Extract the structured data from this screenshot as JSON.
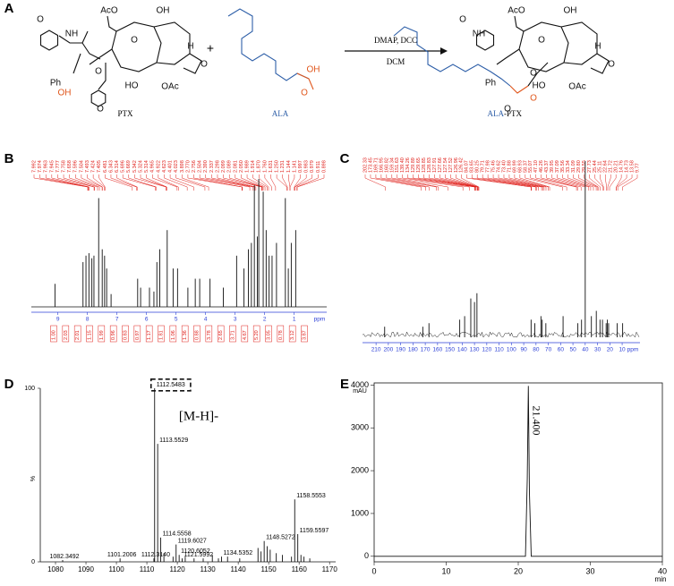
{
  "figure": {
    "A": {
      "label": "A",
      "plus": "+",
      "reagents": {
        "above": "DMAP, DCC",
        "below": "DCM"
      },
      "ptx": {
        "name": "PTX",
        "atoms": [
          "AcO",
          "O",
          "OH",
          "NH",
          "O",
          "Ph",
          "O",
          "OH",
          "HO",
          "OAc",
          "O",
          "O",
          "H"
        ]
      },
      "ala": {
        "name": "ALA",
        "atoms": [
          "OH",
          "O"
        ]
      },
      "product": {
        "name": [
          "ALA",
          "-PTX"
        ],
        "atoms": [
          "AcO",
          "O",
          "OH",
          "NH",
          "O",
          "Ph",
          "O",
          "O",
          "HO",
          "OAc",
          "O",
          "O",
          "H"
        ]
      },
      "colors": {
        "ala": "#2e5fa8",
        "acid": "#e0561b"
      }
    },
    "B": {
      "label": "B",
      "type": "spectrum",
      "peak_labels": [
        "7.992",
        "7.974",
        "7.963",
        "7.945",
        "7.777",
        "7.758",
        "7.658",
        "7.596",
        "7.504",
        "7.493",
        "7.424",
        "7.405",
        "6.481",
        "6.343",
        "6.314",
        "5.696",
        "5.669",
        "5.342",
        "5.324",
        "5.314",
        "4.965",
        "4.922",
        "4.623",
        "4.401",
        "4.023",
        "3.898",
        "2.770",
        "2.756",
        "2.504",
        "2.390",
        "2.337",
        "2.298",
        "2.099",
        "2.089",
        "2.081",
        "2.050",
        "1.989",
        "1.914",
        "1.870",
        "1.760",
        "1.631",
        "1.250",
        "1.231",
        "1.144",
        "1.141",
        "0.997",
        "0.983",
        "0.979",
        "0.911",
        "0.898"
      ],
      "xlim": [
        9.9,
        -0.1
      ],
      "xticks": [
        9,
        8,
        7,
        6,
        5,
        4,
        3,
        2,
        1
      ],
      "x_unit": "ppm",
      "ylim": [
        0,
        100
      ],
      "integrals": [
        "1.00",
        "2.03",
        "2.01",
        "1.15",
        "1.99",
        "0.96",
        "0.83",
        "0.97",
        "1.17",
        "1.81",
        "1.06",
        "1.36",
        "0.88",
        "3.78",
        "2.65",
        "3.71",
        "4.67",
        "5.20",
        "3.05",
        "0.78",
        "3.12",
        "3.87"
      ],
      "peaks": {
        "ppm": [
          9.1,
          8.15,
          8.05,
          7.95,
          7.85,
          7.78,
          7.62,
          7.5,
          7.42,
          7.35,
          7.2,
          6.3,
          6.2,
          5.9,
          5.75,
          5.65,
          5.55,
          5.3,
          5.1,
          4.95,
          4.6,
          4.35,
          4.2,
          3.85,
          3.4,
          2.95,
          2.7,
          2.55,
          2.45,
          2.35,
          2.25,
          2.2,
          2.05,
          1.95,
          1.85,
          1.75,
          1.6,
          1.3,
          1.2,
          1.1,
          0.95
        ],
        "intensity": [
          18,
          35,
          40,
          42,
          38,
          40,
          85,
          45,
          40,
          30,
          10,
          22,
          15,
          15,
          12,
          35,
          45,
          60,
          30,
          30,
          15,
          22,
          22,
          22,
          15,
          40,
          30,
          45,
          50,
          95,
          55,
          100,
          90,
          60,
          40,
          40,
          50,
          85,
          30,
          50,
          60
        ]
      },
      "color": "#111",
      "axis_color": "#2b3fd6",
      "label_color": "#e0201b"
    },
    "C": {
      "label": "C",
      "type": "spectrum",
      "peak_labels": [
        "202.33",
        "173.45",
        "169.71",
        "166.95",
        "160.82",
        "159.34",
        "151.63",
        "139.40",
        "134.26",
        "129.89",
        "129.65",
        "128.85",
        "128.83",
        "127.91",
        "127.66",
        "127.54",
        "127.52",
        "126.96",
        "126.42",
        "84.07",
        "83.65",
        "80.25",
        "79.71",
        "77.98",
        "75.46",
        "74.62",
        "73.40",
        "71.88",
        "69.99",
        "68.93",
        "58.37",
        "55.07",
        "47.10",
        "46.26",
        "43.37",
        "39.95",
        "37.09",
        "35.56",
        "33.34",
        "31.09",
        "29.80",
        "29.55",
        "27.73",
        "25.44",
        "25.11",
        "22.64",
        "21.72",
        "20.21",
        "14.76",
        "14.73",
        "13.58",
        "9.77"
      ],
      "xlim": [
        221,
        -4.5
      ],
      "xticks": [
        210,
        200,
        190,
        180,
        170,
        160,
        150,
        140,
        130,
        120,
        110,
        100,
        90,
        80,
        70,
        60,
        50,
        40,
        30,
        20,
        10
      ],
      "x_unit": "ppm",
      "ylim": [
        0,
        100
      ],
      "peaks": {
        "ppm": [
          203,
          172,
          167,
          142,
          138,
          133,
          130,
          128,
          84,
          81,
          76,
          75,
          72,
          58,
          46,
          43,
          40,
          35,
          31,
          28,
          26,
          23,
          22,
          21,
          14,
          9.6
        ],
        "intensity": [
          6,
          6,
          8,
          10,
          12,
          22,
          20,
          25,
          10,
          8,
          12,
          10,
          8,
          12,
          8,
          10,
          100,
          12,
          15,
          10,
          10,
          8,
          10,
          8,
          8,
          8
        ]
      },
      "color": "#111",
      "axis_color": "#2b3fd6",
      "label_color": "#e0201b"
    },
    "D": {
      "label": "D",
      "type": "stick",
      "annotation": "[M-H]-",
      "y_label": "%",
      "xlim": [
        1075,
        1172
      ],
      "xticks": [
        1080,
        1090,
        1100,
        1110,
        1120,
        1130,
        1140,
        1150,
        1160,
        1170
      ],
      "ylim": [
        0,
        100
      ],
      "yticks": [
        0,
        100
      ],
      "peaks": {
        "x": [
          1082.3492,
          1101.2006,
          1112.314,
          1112.5483,
          1113.5529,
          1114.5558,
          1119.6027,
          1120.6052,
          1121.5992,
          1134.5352,
          1148.5272,
          1158.5553,
          1159.5597,
          1115.6,
          1118.6,
          1122.6,
          1125.5,
          1128.5,
          1131.5,
          1133.5,
          1136.5,
          1140.5,
          1146.5,
          1147.5,
          1149.5,
          1150.5,
          1152.5,
          1154.5,
          1157.5,
          1160.6,
          1161.6,
          1163.5
        ],
        "values": [
          1,
          2,
          2,
          100,
          68,
          14,
          10,
          4,
          2,
          3,
          12,
          36,
          16,
          5,
          3,
          3,
          2,
          2,
          4,
          2,
          3,
          2,
          8,
          6,
          9,
          7,
          5,
          4,
          3,
          4,
          3,
          2
        ],
        "x_labels": [
          "1082.3492",
          "1101.2006",
          "1112.3140",
          "1112.5483",
          "1113.5529",
          "1114.5558",
          "1119.6027",
          "1120.6052",
          "1121.5992",
          "1134.5352",
          "1148.5272",
          "1158.5553",
          "1159.5597",
          null,
          null,
          null,
          null,
          null,
          null,
          null,
          null,
          null,
          null,
          null,
          null,
          null,
          null,
          null,
          null,
          null,
          null,
          null
        ]
      },
      "color": "#111"
    },
    "E": {
      "label": "E",
      "type": "line",
      "y_label": "mAU",
      "x_label": "min",
      "peak_label": "21.400",
      "xlim": [
        0,
        40
      ],
      "xticks": [
        0,
        10,
        20,
        30,
        40
      ],
      "ylim": [
        -130,
        4050
      ],
      "yticks": [
        0,
        1000,
        2000,
        3000,
        4000
      ],
      "series": [
        {
          "x": [
            0,
            2,
            21.0,
            21.25,
            21.4,
            21.55,
            21.8,
            40
          ],
          "values": [
            0,
            0,
            0,
            1800,
            3980,
            1500,
            0,
            0
          ]
        }
      ],
      "color": "#111"
    }
  }
}
